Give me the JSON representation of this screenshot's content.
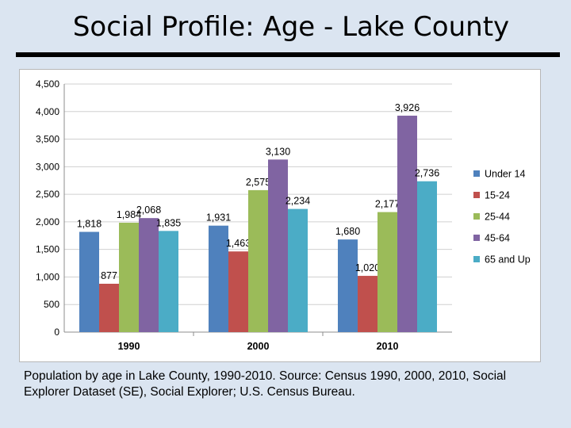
{
  "slide": {
    "title": "Social Profile: Age - Lake County",
    "caption": "Population by age in Lake County, 1990-2010.  Source: Census 1990, 2000, 2010, Social Explorer Dataset (SE), Social Explorer; U.S. Census Bureau."
  },
  "chart_data": {
    "type": "bar",
    "title": "",
    "xlabel": "",
    "ylabel": "",
    "categories": [
      "1990",
      "2000",
      "2010"
    ],
    "series": [
      {
        "name": "Under 14",
        "color": "#4f81bd",
        "values": [
          1818,
          1931,
          1680
        ],
        "labels": [
          "1,818",
          "1,931",
          "1,680"
        ]
      },
      {
        "name": "15-24",
        "color": "#c0504d",
        "values": [
          877,
          1463,
          1020
        ],
        "labels": [
          "877",
          "1,463",
          "1,020"
        ]
      },
      {
        "name": "25-44",
        "color": "#9bbb59",
        "values": [
          1984,
          2575,
          2177
        ],
        "labels": [
          "1,984",
          "2,575",
          "2,177"
        ]
      },
      {
        "name": "45-64",
        "color": "#8064a2",
        "values": [
          2068,
          3130,
          3926
        ],
        "labels": [
          "2,068",
          "3,130",
          "3,926"
        ]
      },
      {
        "name": "65 and Up",
        "color": "#4bacc6",
        "values": [
          1835,
          2234,
          2736
        ],
        "labels": [
          "1,835",
          "2,234",
          "2,736"
        ]
      }
    ],
    "ylim": [
      0,
      4500
    ],
    "yticks": [
      0,
      500,
      1000,
      1500,
      2000,
      2500,
      3000,
      3500,
      4000,
      4500
    ],
    "ytick_labels": [
      "0",
      "500",
      "1,000",
      "1,500",
      "2,000",
      "2,500",
      "3,000",
      "3,500",
      "4,000",
      "4,500"
    ],
    "grid": true,
    "legend": "right"
  }
}
